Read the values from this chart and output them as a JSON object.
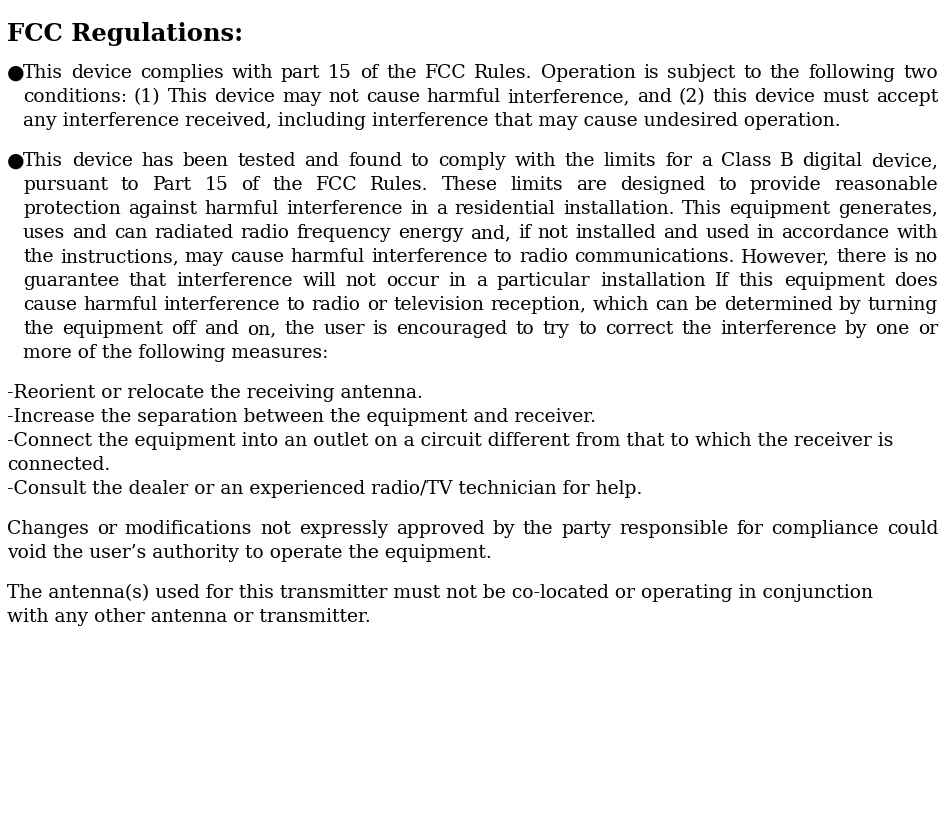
{
  "title": "FCC Regulations:",
  "background_color": "#ffffff",
  "text_color": "#000000",
  "title_fontsize": 17.5,
  "body_fontsize": 13.5,
  "font_family": "DejaVu Serif",
  "paragraphs": [
    {
      "bullet": true,
      "justify": true,
      "text": "This device complies with part 15 of the FCC Rules. Operation is subject to the following two conditions: (1) This device may not cause harmful interference, and (2) this device must accept any interference received, including interference that may cause undesired operation."
    },
    {
      "bullet": true,
      "justify": true,
      "text": "This device has been tested and found to comply with the limits for a Class B digital device, pursuant to Part 15 of the FCC Rules. These limits are designed to provide reasonable protection against harmful interference in a residential installation. This equipment generates, uses and can radiated radio frequency energy and, if not installed and used in accordance with the instructions, may cause harmful interference to radio communications. However, there is no guarantee that interference will not occur in a particular installation If this equipment does cause harmful interference to radio or television reception, which can be determined by turning the equipment off and on, the user is encouraged to try to correct the interference by one or more of the following measures:"
    },
    {
      "bullet": false,
      "justify": false,
      "lines": [
        "-Reorient or relocate the receiving antenna.",
        "-Increase the separation between the equipment and receiver.",
        "-Connect the equipment into an outlet on a circuit different from that to which the receiver is connected.",
        "-Consult the dealer or an experienced radio/TV technician for help."
      ]
    },
    {
      "bullet": false,
      "justify": true,
      "text": "Changes or modifications not expressly approved by the party responsible for compliance could void the user’s authority to operate the equipment."
    },
    {
      "bullet": false,
      "justify": false,
      "lines": [
        "The antenna(s) used for this transmitter must not be co-located or operating in conjunction",
        "with any other antenna or transmitter."
      ]
    }
  ]
}
